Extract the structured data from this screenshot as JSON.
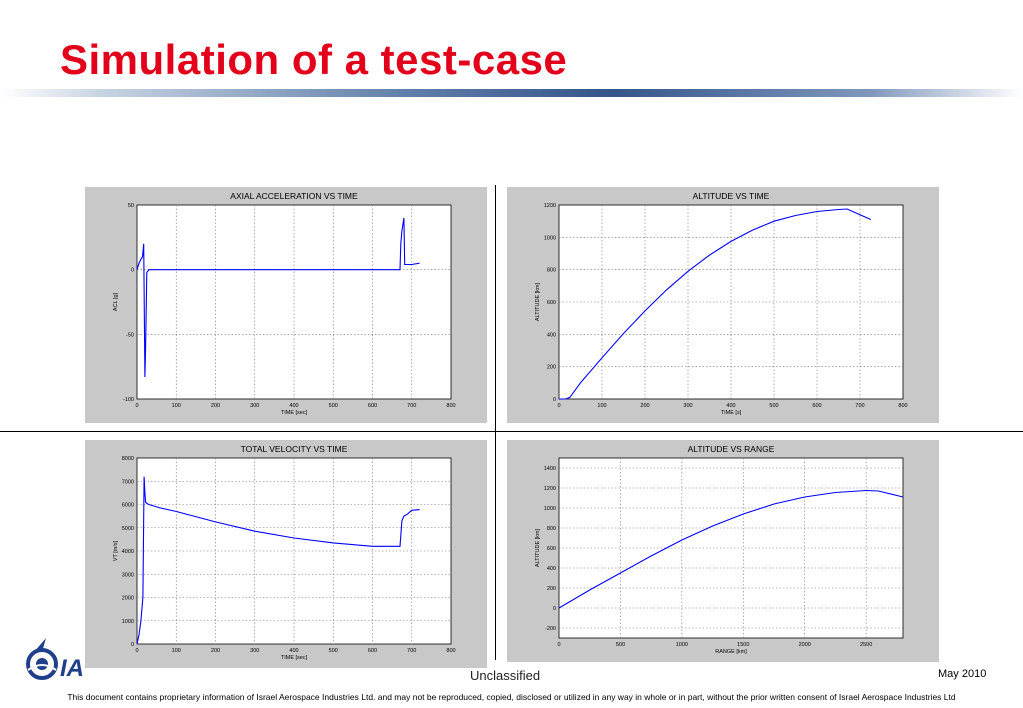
{
  "slide": {
    "title": "Simulation of a test-case",
    "classification": "Unclassified",
    "date": "May 2010",
    "disclaimer": "This document contains proprietary information of Israel Aerospace Industries Ltd. and may not be reproduced, copied, disclosed or utilized in any way in whole or in part, without the prior written consent of Israel Aerospace Industries Ltd",
    "logo_text": "IAI",
    "colors": {
      "title": "#e3001b",
      "line": "#0000ff",
      "logo": "#1e3f8a"
    }
  },
  "chart_data": [
    {
      "type": "line",
      "title": "AXIAL ACCELERATION VS TIME",
      "xlabel": "TIME [sec]",
      "ylabel": "ACL [g]",
      "xlim": [
        0,
        800
      ],
      "ylim": [
        -100,
        50
      ],
      "xticks": [
        0,
        100,
        200,
        300,
        400,
        500,
        600,
        700,
        800
      ],
      "yticks": [
        -100,
        -50,
        0,
        50
      ],
      "grid": true,
      "x": [
        0,
        5,
        10,
        14,
        17,
        20,
        22,
        25,
        28,
        30,
        35,
        60,
        200,
        400,
        600,
        670,
        672,
        675,
        680,
        682,
        684,
        700,
        720
      ],
      "y": [
        0,
        5,
        8,
        10,
        20,
        -83,
        -60,
        -2,
        -1,
        0,
        0,
        0,
        0,
        0,
        0,
        0,
        20,
        30,
        40,
        4,
        4,
        4,
        5
      ]
    },
    {
      "type": "line",
      "title": "ALTITUDE VS TIME",
      "xlabel": "TIME [s]",
      "ylabel": "ALTITUDE [km]",
      "xlim": [
        0,
        800
      ],
      "ylim": [
        0,
        1200
      ],
      "xticks": [
        0,
        100,
        200,
        300,
        400,
        500,
        600,
        700,
        800
      ],
      "yticks": [
        0,
        200,
        400,
        600,
        800,
        1000,
        1200
      ],
      "grid": true,
      "x": [
        0,
        15,
        25,
        50,
        100,
        150,
        200,
        250,
        300,
        350,
        400,
        450,
        500,
        550,
        600,
        650,
        670,
        700,
        725
      ],
      "y": [
        0,
        0,
        10,
        100,
        255,
        405,
        545,
        675,
        790,
        890,
        975,
        1045,
        1100,
        1135,
        1160,
        1172,
        1175,
        1140,
        1110
      ]
    },
    {
      "type": "line",
      "title": "TOTAL VELOCITY VS TIME",
      "xlabel": "TIME [sec]",
      "ylabel": "VT [m/s]",
      "xlim": [
        0,
        800
      ],
      "ylim": [
        0,
        8000
      ],
      "xticks": [
        0,
        100,
        200,
        300,
        400,
        500,
        600,
        700,
        800
      ],
      "yticks": [
        0,
        1000,
        2000,
        3000,
        4000,
        5000,
        6000,
        7000,
        8000
      ],
      "grid": true,
      "x": [
        0,
        5,
        10,
        15,
        18,
        20,
        22,
        25,
        30,
        60,
        100,
        200,
        300,
        400,
        500,
        600,
        670,
        675,
        680,
        690,
        700,
        720
      ],
      "y": [
        0,
        400,
        1000,
        2000,
        7200,
        6500,
        6100,
        6050,
        6000,
        5850,
        5700,
        5250,
        4850,
        4560,
        4350,
        4200,
        4200,
        5300,
        5500,
        5600,
        5750,
        5780
      ]
    },
    {
      "type": "line",
      "title": "ALTITUDE VS RANGE",
      "xlabel": "RANGE [km]",
      "ylabel": "ALTITUDE [km]",
      "xlim": [
        0,
        2800
      ],
      "ylim": [
        -300,
        1500
      ],
      "xticks": [
        0,
        500,
        1000,
        1500,
        2000,
        2500
      ],
      "yticks": [
        -200,
        0,
        200,
        400,
        600,
        800,
        1000,
        1200,
        1400
      ],
      "grid": true,
      "x": [
        0,
        250,
        500,
        750,
        1000,
        1250,
        1500,
        1750,
        2000,
        2250,
        2500,
        2600,
        2800
      ],
      "y": [
        0,
        180,
        350,
        520,
        680,
        820,
        940,
        1040,
        1110,
        1155,
        1175,
        1170,
        1110
      ]
    }
  ]
}
